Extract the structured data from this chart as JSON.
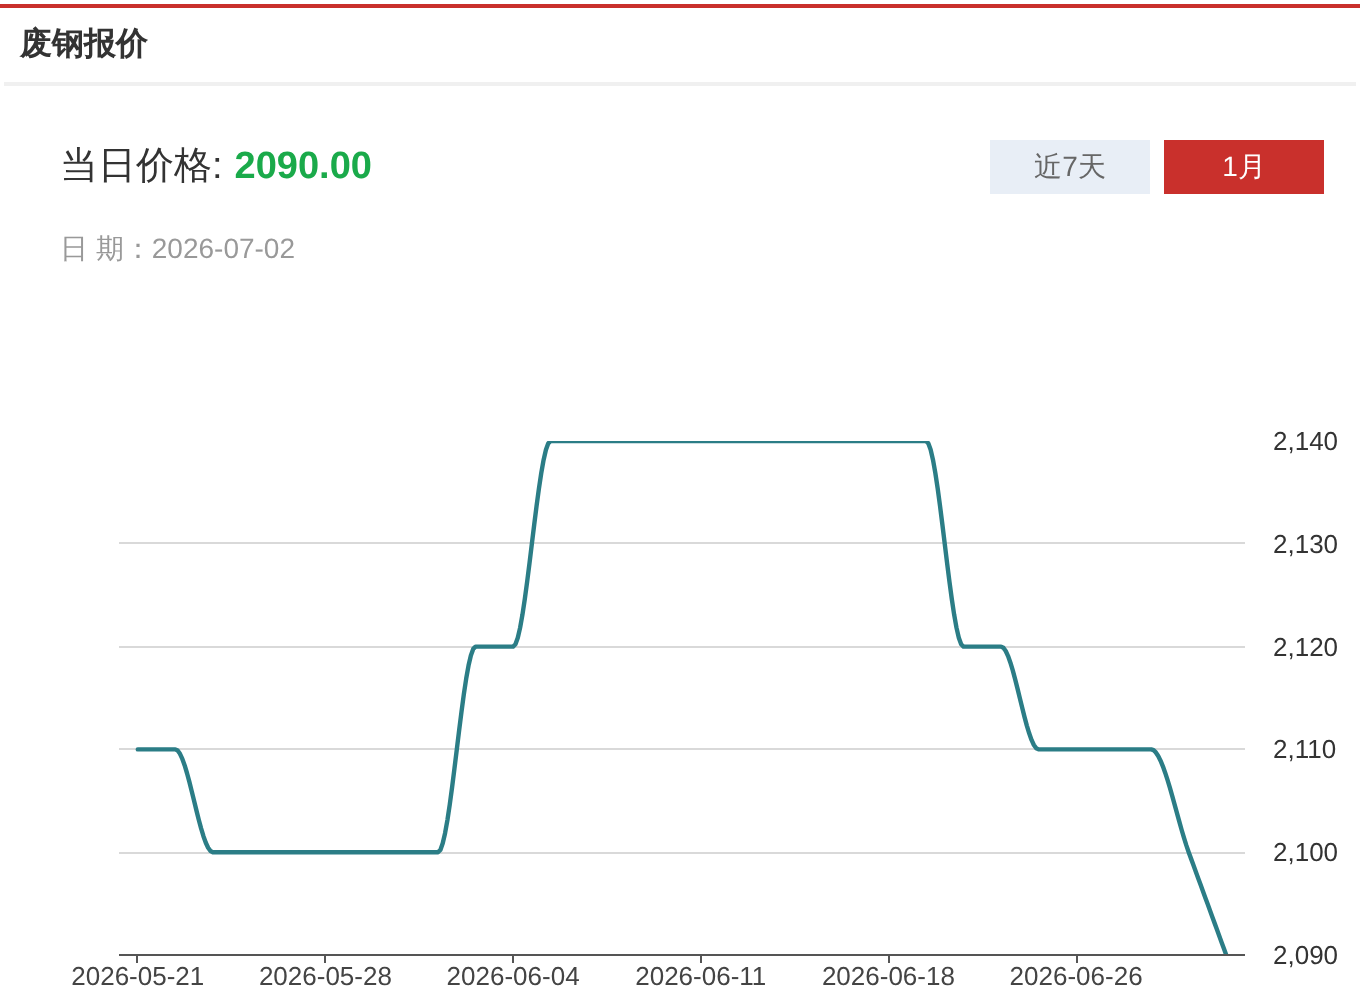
{
  "chart_data": {
    "type": "line",
    "title": "废钢报价",
    "annotations": [
      "当日价格:",
      "2090.00",
      "日 期：2026-07-02",
      "近7天",
      "1月"
    ],
    "categories": [
      "2026-05-21",
      null,
      null,
      null,
      null,
      "2026-05-28",
      null,
      null,
      null,
      null,
      "2026-06-04",
      null,
      null,
      null,
      null,
      "2026-06-11",
      null,
      null,
      null,
      null,
      "2026-06-18",
      null,
      null,
      null,
      null,
      "2026-06-26",
      null,
      null,
      null,
      null
    ],
    "series": [
      {
        "color": "#2b7d86",
        "values": [
          2110,
          2110,
          2100,
          2100,
          2100,
          2100,
          2100,
          2100,
          2100,
          2120,
          2120,
          2140,
          2140,
          2140,
          2140,
          2140,
          2140,
          2140,
          2140,
          2140,
          2140,
          2140,
          2120,
          2120,
          2110,
          2110,
          2110,
          2110,
          2100,
          2090
        ]
      }
    ],
    "ylim": [
      2090,
      2140
    ],
    "yticks": [
      {
        "value": 2090,
        "label": "2,090"
      },
      {
        "value": 2100,
        "label": "2,100"
      },
      {
        "value": 2110,
        "label": "2,110"
      },
      {
        "value": 2120,
        "label": "2,120"
      },
      {
        "value": 2130,
        "label": "2,130"
      },
      {
        "value": 2140,
        "label": "2,140"
      }
    ],
    "grid": "y",
    "line_style": "solid"
  }
}
